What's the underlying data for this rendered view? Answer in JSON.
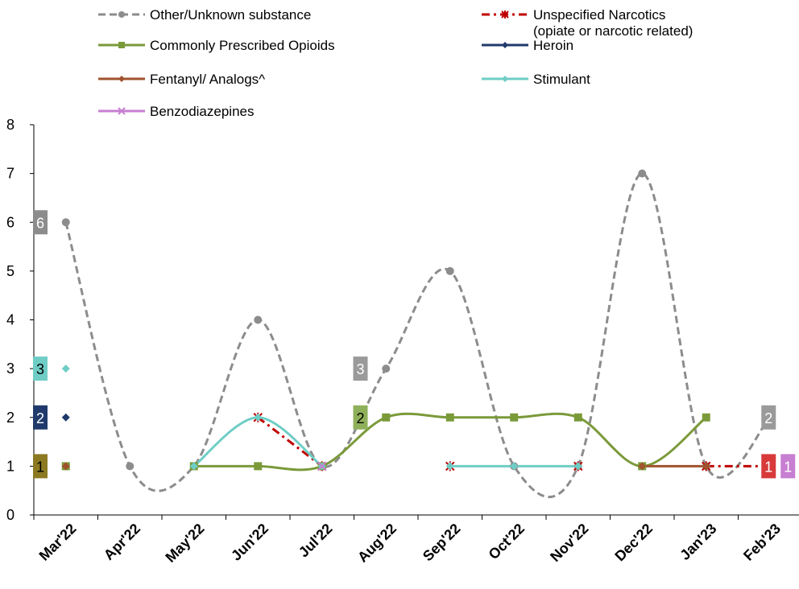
{
  "chart_data": {
    "type": "line",
    "categories": [
      "Mar'22",
      "Apr'22",
      "May'22",
      "Jun'22",
      "Jul'22",
      "Aug'22",
      "Sep'22",
      "Oct'22",
      "Nov'22",
      "Dec'22",
      "Jan'23",
      "Feb'23"
    ],
    "ylim": [
      0,
      8
    ],
    "yticks": [
      0,
      1,
      2,
      3,
      4,
      5,
      6,
      7,
      8
    ],
    "grid": false,
    "legend_position": "top",
    "smooth": true,
    "series": [
      {
        "name": "Other/Unknown substance",
        "color": "#8c8c8c",
        "dash": "dashed",
        "marker": "circle",
        "values": [
          6,
          1,
          1,
          4,
          1,
          3,
          5,
          1,
          1,
          7,
          1,
          2
        ]
      },
      {
        "name": "Unspecified Narcotics (opiate or narcotic related)",
        "name_lines": [
          "Unspecified Narcotics",
          "(opiate or narcotic related)"
        ],
        "color": "#c00000",
        "dash": "dashdot",
        "marker": "asterisk",
        "values": [
          null,
          null,
          null,
          2,
          1,
          null,
          1,
          null,
          1,
          null,
          1,
          1
        ]
      },
      {
        "name": "Commonly Prescribed Opioids",
        "color": "#7a9a3a",
        "dash": "solid",
        "marker": "square",
        "values": [
          1,
          null,
          1,
          1,
          1,
          2,
          2,
          2,
          2,
          1,
          2,
          null
        ]
      },
      {
        "name": "Heroin",
        "color": "#1f3a6b",
        "dash": "solid",
        "marker": "diamond",
        "values": [
          2,
          null,
          null,
          null,
          null,
          null,
          null,
          null,
          null,
          null,
          null,
          null
        ]
      },
      {
        "name": "Fentanyl/ Analogs^",
        "color": "#a0522d",
        "dash": "solid",
        "marker": "diamond",
        "values": [
          1,
          null,
          null,
          null,
          null,
          null,
          null,
          null,
          null,
          1,
          1,
          null
        ]
      },
      {
        "name": "Stimulant",
        "color": "#6fcdc6",
        "dash": "solid",
        "marker": "diamond",
        "values": [
          3,
          null,
          1,
          2,
          1,
          null,
          1,
          1,
          1,
          null,
          null,
          null
        ]
      },
      {
        "name": "Benzodiazepines",
        "color": "#c77fd1",
        "dash": "solid",
        "marker": "x",
        "values": [
          null,
          null,
          null,
          null,
          1,
          null,
          null,
          null,
          null,
          null,
          null,
          1
        ]
      }
    ],
    "data_labels": [
      {
        "text": "6",
        "category": "Mar'22",
        "value": 6,
        "bg": "#8c8c8c",
        "fg": "#ffffff"
      },
      {
        "text": "3",
        "category": "Mar'22",
        "value": 3,
        "bg": "#6fcdc6",
        "fg": "#000000"
      },
      {
        "text": "2",
        "category": "Mar'22",
        "value": 2,
        "bg": "#1f3a6b",
        "fg": "#ffffff"
      },
      {
        "text": "1",
        "category": "Mar'22",
        "value": 1,
        "bg": "#8c7a22",
        "fg": "#000000"
      },
      {
        "text": "3",
        "category": "Aug'22",
        "value": 3,
        "bg": "#9a9a9a",
        "fg": "#ffffff"
      },
      {
        "text": "2",
        "category": "Aug'22",
        "value": 2,
        "bg": "#8fb05a",
        "fg": "#000000"
      },
      {
        "text": "2",
        "category": "Feb'23",
        "value": 2,
        "bg": "#9a9a9a",
        "fg": "#ffffff"
      },
      {
        "text": "1",
        "category": "Feb'23",
        "value": 1,
        "bg": "#d83a3a",
        "fg": "#ffffff"
      },
      {
        "text": "1",
        "category": "Feb'23",
        "value": 1,
        "bg": "#c77fd1",
        "fg": "#ffffff"
      }
    ]
  }
}
